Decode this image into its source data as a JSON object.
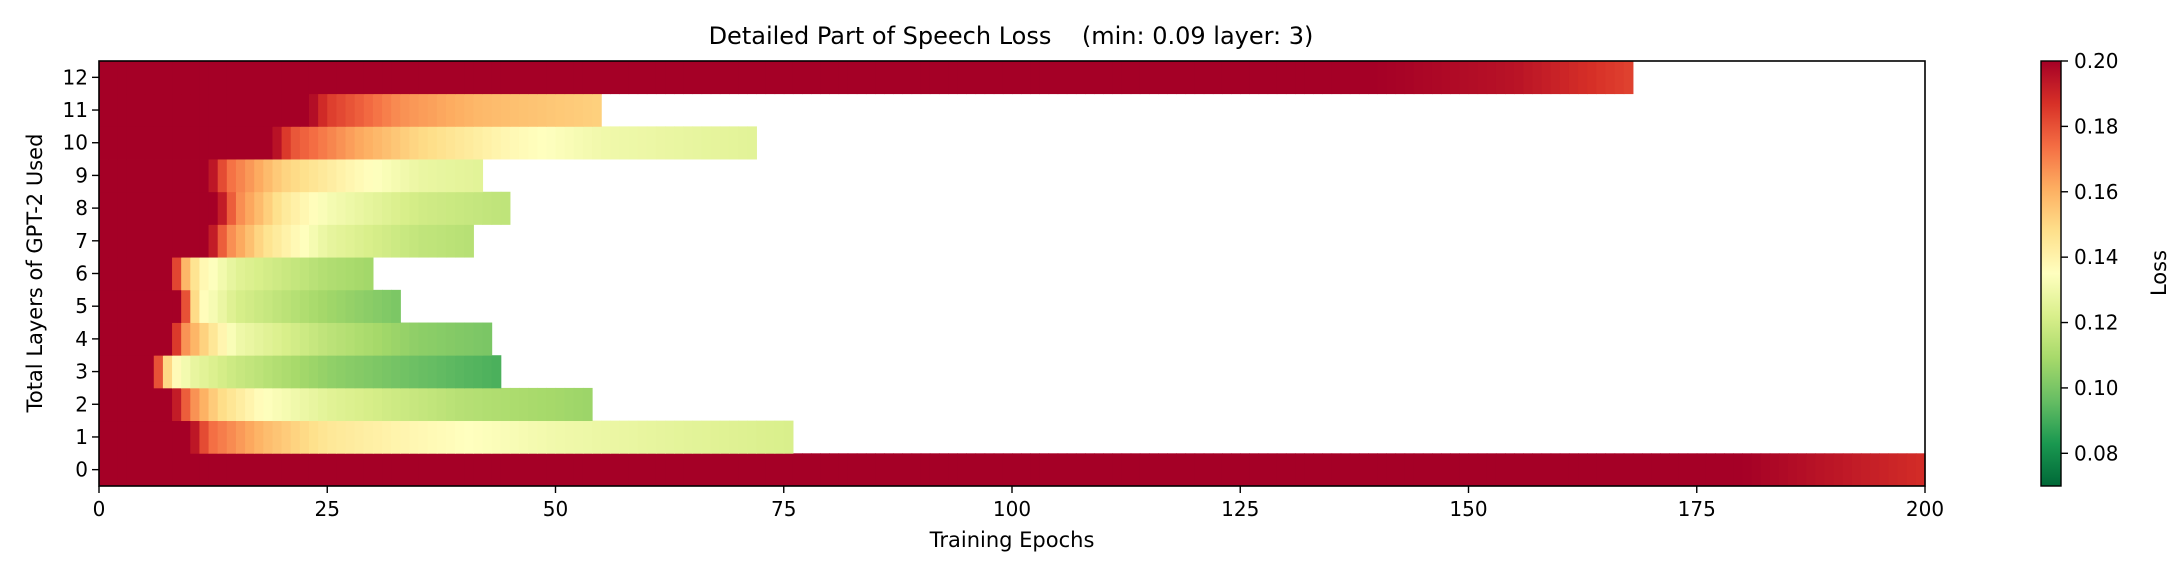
{
  "chart_data": {
    "type": "heatmap",
    "title": "Detailed Part of Speech Loss    (min: 0.09 layer: 3)",
    "xlabel": "Training Epochs",
    "ylabel": "Total Layers of GPT-2 Used",
    "xlim": [
      0,
      200
    ],
    "ylim": [
      -0.5,
      12.5
    ],
    "xticks": [
      0,
      25,
      50,
      75,
      100,
      125,
      150,
      175,
      200
    ],
    "yticks": [
      0,
      1,
      2,
      3,
      4,
      5,
      6,
      7,
      8,
      9,
      10,
      11,
      12
    ],
    "grid": false,
    "colormap": "RdYlGn_r",
    "colorbar": {
      "label": "Loss",
      "range": [
        0.07,
        0.2
      ],
      "ticks": [
        0.08,
        0.1,
        0.12,
        0.14,
        0.16,
        0.18,
        0.2
      ],
      "tick_labels": [
        "0.08",
        "0.10",
        "0.12",
        "0.14",
        "0.16",
        "0.18",
        "0.20"
      ]
    },
    "series": [
      {
        "layer": 0,
        "epochs": 200,
        "loss_points": [
          [
            0,
            0.2
          ],
          [
            140,
            0.2
          ],
          [
            180,
            0.2
          ],
          [
            200,
            0.188
          ]
        ]
      },
      {
        "layer": 1,
        "epochs": 76,
        "loss_points": [
          [
            0,
            0.2
          ],
          [
            10,
            0.2
          ],
          [
            12,
            0.175
          ],
          [
            18,
            0.158
          ],
          [
            25,
            0.145
          ],
          [
            35,
            0.138
          ],
          [
            50,
            0.13
          ],
          [
            76,
            0.122
          ]
        ]
      },
      {
        "layer": 2,
        "epochs": 54,
        "loss_points": [
          [
            0,
            0.2
          ],
          [
            8,
            0.2
          ],
          [
            10,
            0.17
          ],
          [
            13,
            0.15
          ],
          [
            18,
            0.135
          ],
          [
            25,
            0.125
          ],
          [
            40,
            0.113
          ],
          [
            54,
            0.107
          ]
        ]
      },
      {
        "layer": 3,
        "epochs": 44,
        "loss_points": [
          [
            0,
            0.2
          ],
          [
            6,
            0.2
          ],
          [
            7,
            0.16
          ],
          [
            8,
            0.14
          ],
          [
            10,
            0.128
          ],
          [
            15,
            0.118
          ],
          [
            25,
            0.105
          ],
          [
            35,
            0.097
          ],
          [
            44,
            0.091
          ]
        ]
      },
      {
        "layer": 4,
        "epochs": 43,
        "loss_points": [
          [
            0,
            0.2
          ],
          [
            8,
            0.2
          ],
          [
            9,
            0.17
          ],
          [
            12,
            0.148
          ],
          [
            15,
            0.13
          ],
          [
            25,
            0.115
          ],
          [
            35,
            0.104
          ],
          [
            43,
            0.1
          ]
        ]
      },
      {
        "layer": 5,
        "epochs": 33,
        "loss_points": [
          [
            0,
            0.2
          ],
          [
            9,
            0.2
          ],
          [
            10,
            0.16
          ],
          [
            11,
            0.138
          ],
          [
            15,
            0.122
          ],
          [
            25,
            0.108
          ],
          [
            33,
            0.1
          ]
        ]
      },
      {
        "layer": 6,
        "epochs": 30,
        "loss_points": [
          [
            0,
            0.2
          ],
          [
            8,
            0.2
          ],
          [
            9,
            0.165
          ],
          [
            11,
            0.14
          ],
          [
            15,
            0.125
          ],
          [
            25,
            0.112
          ],
          [
            30,
            0.108
          ]
        ]
      },
      {
        "layer": 7,
        "epochs": 41,
        "loss_points": [
          [
            0,
            0.2
          ],
          [
            12,
            0.2
          ],
          [
            14,
            0.17
          ],
          [
            18,
            0.148
          ],
          [
            25,
            0.127
          ],
          [
            35,
            0.116
          ],
          [
            41,
            0.113
          ]
        ]
      },
      {
        "layer": 8,
        "epochs": 45,
        "loss_points": [
          [
            0,
            0.2
          ],
          [
            13,
            0.2
          ],
          [
            15,
            0.17
          ],
          [
            20,
            0.145
          ],
          [
            25,
            0.132
          ],
          [
            35,
            0.12
          ],
          [
            45,
            0.115
          ]
        ]
      },
      {
        "layer": 9,
        "epochs": 42,
        "loss_points": [
          [
            0,
            0.2
          ],
          [
            12,
            0.2
          ],
          [
            14,
            0.175
          ],
          [
            20,
            0.152
          ],
          [
            28,
            0.138
          ],
          [
            35,
            0.128
          ],
          [
            42,
            0.125
          ]
        ]
      },
      {
        "layer": 10,
        "epochs": 72,
        "loss_points": [
          [
            0,
            0.2
          ],
          [
            19,
            0.2
          ],
          [
            21,
            0.18
          ],
          [
            28,
            0.163
          ],
          [
            35,
            0.15
          ],
          [
            45,
            0.138
          ],
          [
            55,
            0.13
          ],
          [
            72,
            0.125
          ]
        ]
      },
      {
        "layer": 11,
        "epochs": 55,
        "loss_points": [
          [
            0,
            0.2
          ],
          [
            23,
            0.2
          ],
          [
            25,
            0.185
          ],
          [
            33,
            0.167
          ],
          [
            42,
            0.158
          ],
          [
            55,
            0.152
          ]
        ]
      },
      {
        "layer": 12,
        "epochs": 168,
        "loss_points": [
          [
            0,
            0.2
          ],
          [
            140,
            0.2
          ],
          [
            155,
            0.195
          ],
          [
            168,
            0.183
          ]
        ]
      }
    ]
  }
}
